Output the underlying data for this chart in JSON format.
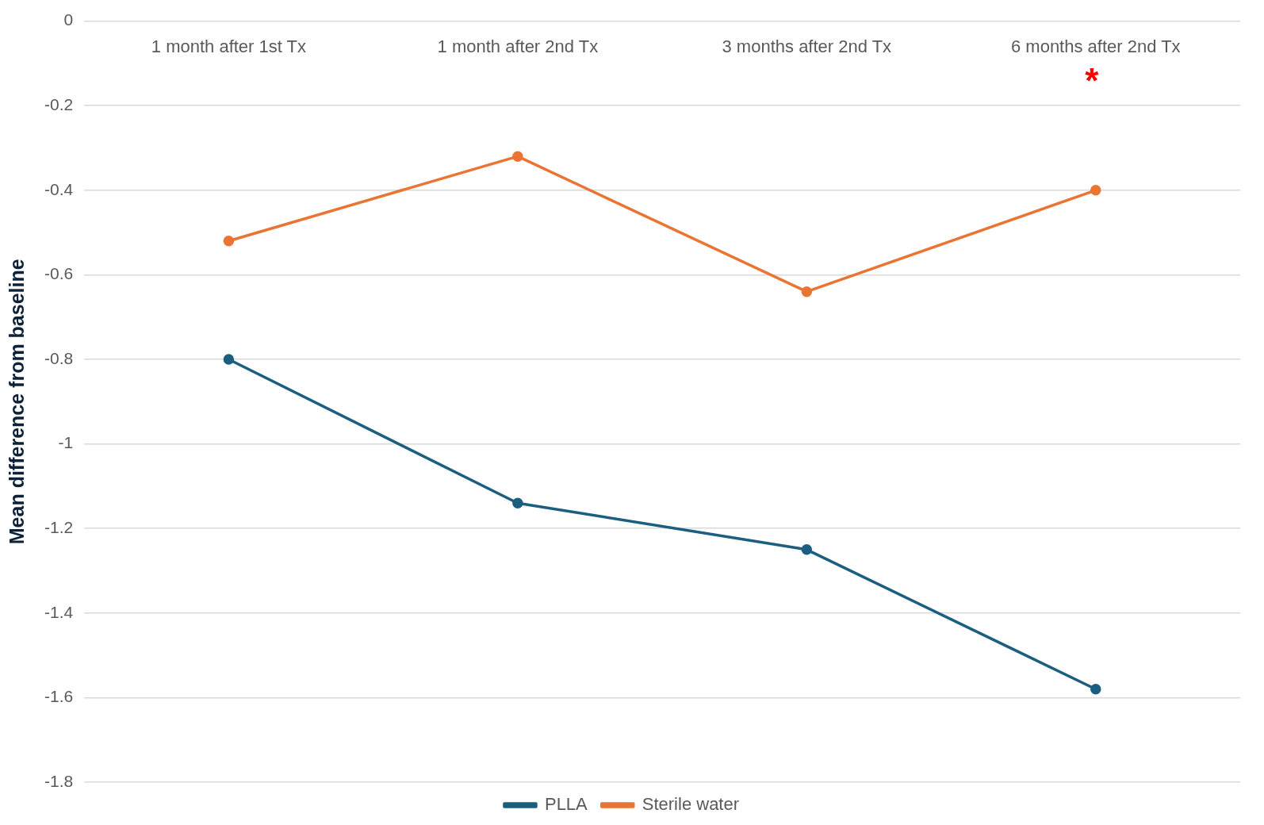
{
  "chart_data": {
    "type": "line",
    "ylabel": "Mean difference from baseline",
    "categories": [
      "1 month after 1st Tx",
      "1 month after 2nd Tx",
      "3 months after 2nd Tx",
      "6 months after 2nd Tx"
    ],
    "series": [
      {
        "name": "PLLA",
        "color": "#1b5e80",
        "values": [
          -0.8,
          -1.14,
          -1.25,
          -1.58
        ]
      },
      {
        "name": "Sterile water",
        "color": "#ea7433",
        "values": [
          -0.52,
          -0.32,
          -0.64,
          -0.4
        ]
      }
    ],
    "ylim": [
      -1.8,
      0
    ],
    "yticks": [
      0,
      -0.2,
      -0.4,
      -0.6,
      -0.8,
      -1,
      -1.2,
      -1.4,
      -1.6,
      -1.8
    ],
    "annotations": [
      "*"
    ],
    "grid": "y",
    "legend": "bottom",
    "marker": "circle",
    "line_style": "solid"
  }
}
